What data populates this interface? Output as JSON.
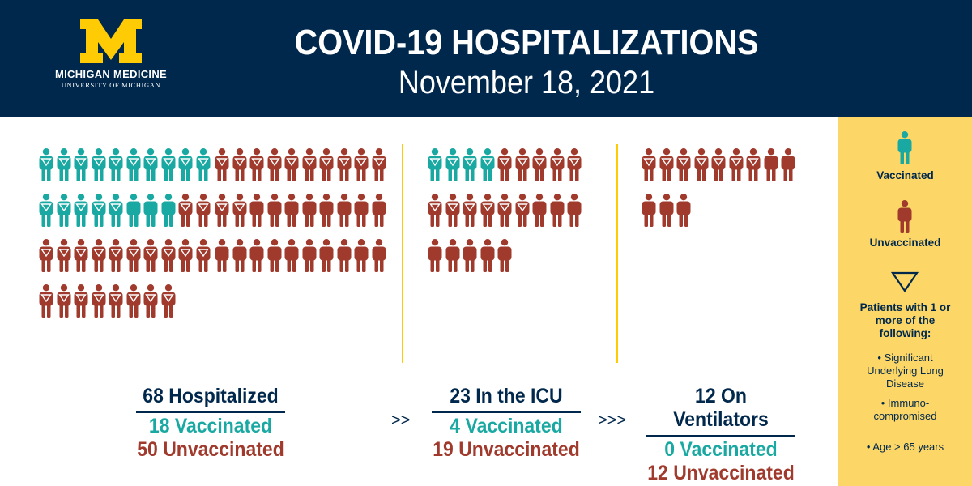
{
  "header": {
    "logo_line1": "MICHIGAN MEDICINE",
    "logo_line2": "UNIVERSITY OF MICHIGAN",
    "title": "COVID-19 HOSPITALIZATIONS",
    "date": "November 18, 2021"
  },
  "colors": {
    "navy": "#00274C",
    "maize": "#FFCB05",
    "vaccinated": "#1AA9A2",
    "unvaccinated": "#A03A2C",
    "legend_bg": "#FCD767"
  },
  "groups": [
    {
      "id": "hospitalized",
      "heading": "68 Hospitalized",
      "vaccinated_label": "18 Vaccinated",
      "unvaccinated_label": "50 Unvaccinated",
      "vaccinated": 18,
      "unvaccinated": 50,
      "vaccinated_risk": 15,
      "unvaccinated_risk": 32
    },
    {
      "id": "icu",
      "heading": "23 In the ICU",
      "vaccinated_label": "4 Vaccinated",
      "unvaccinated_label": "19 Unvaccinated",
      "vaccinated": 4,
      "unvaccinated": 19,
      "vaccinated_risk": 4,
      "unvaccinated_risk": 11
    },
    {
      "id": "ventilators",
      "heading": "12 On Ventilators",
      "vaccinated_label": "0 Vaccinated",
      "unvaccinated_label": "12 Unvaccinated",
      "vaccinated": 0,
      "unvaccinated": 12,
      "vaccinated_risk": 0,
      "unvaccinated_risk": 7
    }
  ],
  "arrows": [
    ">>",
    ">>>"
  ],
  "legend": {
    "vaccinated": "Vaccinated",
    "unvaccinated": "Unvaccinated",
    "risk_heading": "Patients with 1 or more of the following:",
    "risk_items": [
      "• Significant Underlying Lung Disease",
      "• Immuno-compromised",
      "• Age > 65 years"
    ]
  }
}
